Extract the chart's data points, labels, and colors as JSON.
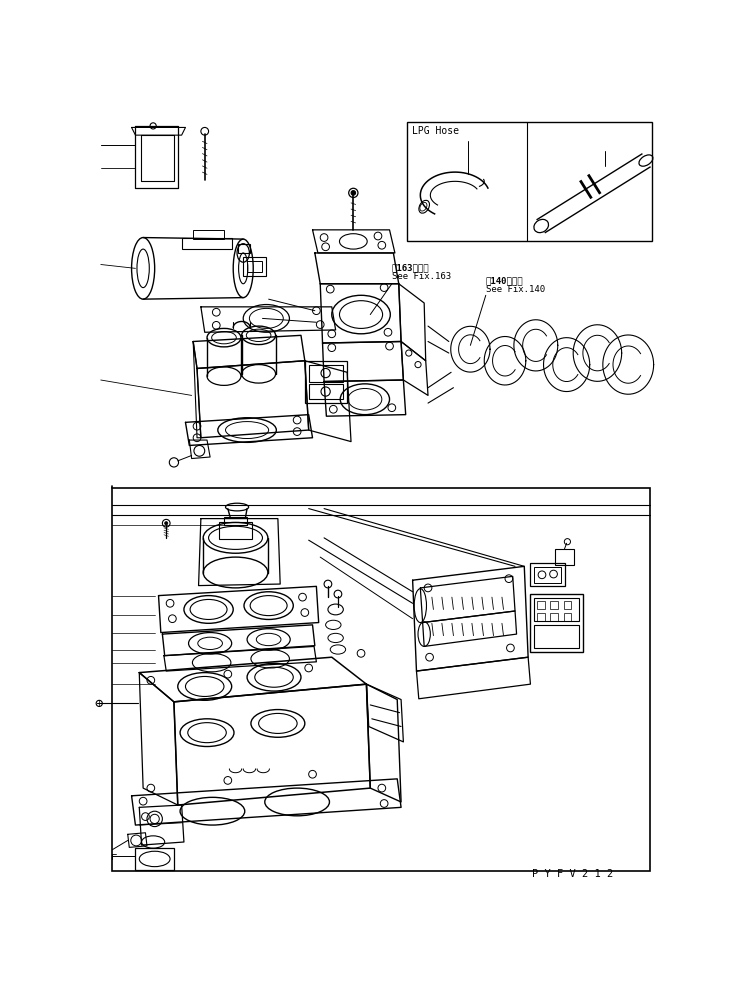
{
  "bg_color": "#ffffff",
  "line_color": "#000000",
  "fig_width": 7.3,
  "fig_height": 9.85,
  "dpi": 100,
  "lpg_hose_label": "LPG Hose",
  "ref163_line1": "第163図参照",
  "ref163_line2": "See Fix.163",
  "ref140_line1": "第140図参照",
  "ref140_line2": "See Fix.140",
  "part_code": "P Y F V 2 1 2"
}
